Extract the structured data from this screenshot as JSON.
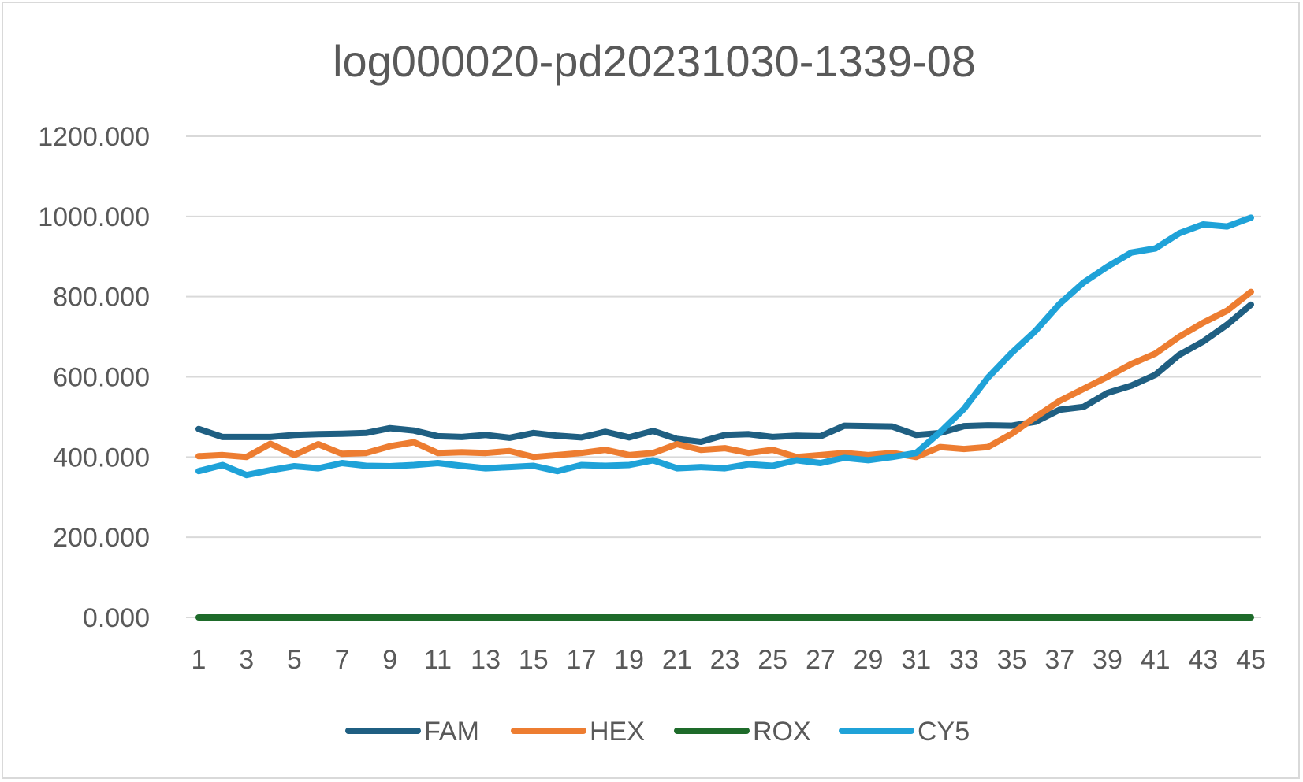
{
  "chart_data": {
    "type": "line",
    "title": "log000020-pd20231030-1339-08",
    "xlabel": "",
    "ylabel": "",
    "x": [
      1,
      2,
      3,
      4,
      5,
      6,
      7,
      8,
      9,
      10,
      11,
      12,
      13,
      14,
      15,
      16,
      17,
      18,
      19,
      20,
      21,
      22,
      23,
      24,
      25,
      26,
      27,
      28,
      29,
      30,
      31,
      32,
      33,
      34,
      35,
      36,
      37,
      38,
      39,
      40,
      41,
      42,
      43,
      44,
      45
    ],
    "x_tick_labels": [
      "1",
      "3",
      "5",
      "7",
      "9",
      "11",
      "13",
      "15",
      "17",
      "19",
      "21",
      "23",
      "25",
      "27",
      "29",
      "31",
      "33",
      "35",
      "37",
      "39",
      "41",
      "43",
      "45"
    ],
    "y_tick_labels": [
      "0.000",
      "200.000",
      "400.000",
      "600.000",
      "800.000",
      "1000.000",
      "1200.000"
    ],
    "ylim": [
      0,
      1200
    ],
    "grid": true,
    "legend_position": "bottom",
    "series": [
      {
        "name": "FAM",
        "color": "#1f5f82",
        "values": [
          470,
          450,
          450,
          450,
          455,
          457,
          458,
          460,
          472,
          466,
          452,
          450,
          455,
          448,
          460,
          453,
          449,
          463,
          449,
          465,
          445,
          438,
          455,
          457,
          450,
          453,
          452,
          478,
          477,
          476,
          455,
          460,
          477,
          479,
          478,
          488,
          518,
          525,
          560,
          578,
          605,
          655,
          688,
          730,
          780
        ]
      },
      {
        "name": "HEX",
        "color": "#ed7d31",
        "values": [
          402,
          405,
          400,
          433,
          405,
          432,
          408,
          410,
          427,
          437,
          410,
          412,
          410,
          415,
          400,
          405,
          410,
          418,
          405,
          410,
          432,
          418,
          422,
          410,
          418,
          400,
          405,
          410,
          405,
          410,
          400,
          425,
          420,
          425,
          458,
          500,
          540,
          570,
          600,
          632,
          658,
          700,
          735,
          765,
          812
        ]
      },
      {
        "name": "ROX",
        "color": "#1e6b2a",
        "values": [
          0,
          0,
          0,
          0,
          0,
          0,
          0,
          0,
          0,
          0,
          0,
          0,
          0,
          0,
          0,
          0,
          0,
          0,
          0,
          0,
          0,
          0,
          0,
          0,
          0,
          0,
          0,
          0,
          0,
          0,
          0,
          0,
          0,
          0,
          0,
          0,
          0,
          0,
          0,
          0,
          0,
          0,
          0,
          0,
          0
        ]
      },
      {
        "name": "CY5",
        "color": "#1fa2d8",
        "values": [
          365,
          380,
          355,
          367,
          377,
          372,
          385,
          378,
          377,
          380,
          385,
          378,
          372,
          375,
          378,
          365,
          380,
          378,
          380,
          392,
          372,
          375,
          372,
          382,
          378,
          392,
          385,
          398,
          392,
          400,
          410,
          462,
          520,
          598,
          660,
          715,
          782,
          835,
          875,
          910,
          920,
          958,
          980,
          975,
          997
        ]
      }
    ]
  }
}
